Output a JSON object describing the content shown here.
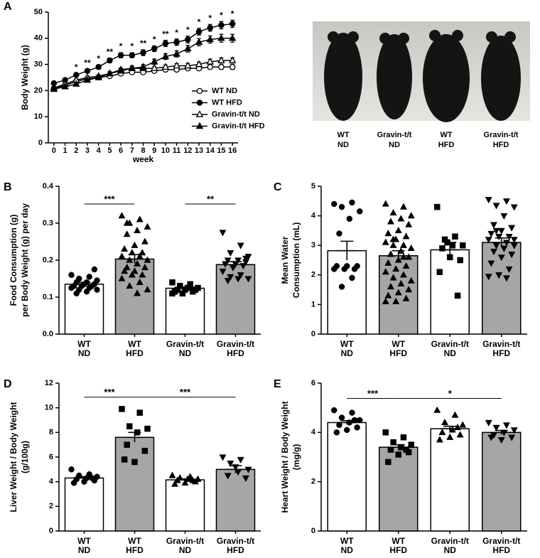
{
  "chart_data": [
    {
      "type": "line",
      "panel_label": "A",
      "ylabel": "Body Weight (g)",
      "xlabel": "week",
      "x": [
        0,
        1,
        2,
        3,
        4,
        5,
        6,
        7,
        8,
        9,
        10,
        11,
        12,
        13,
        14,
        15,
        16
      ],
      "xlim": [
        -0.5,
        16.5
      ],
      "xticks": [
        0,
        1,
        2,
        3,
        4,
        5,
        6,
        7,
        8,
        9,
        10,
        11,
        12,
        13,
        14,
        15,
        16
      ],
      "ylim": [
        0,
        50
      ],
      "yticks": [
        0,
        10,
        20,
        30,
        40,
        50
      ],
      "legend": "lower right",
      "series": [
        {
          "name": "WT ND",
          "color": "#000000",
          "marker": "circle",
          "filled": false,
          "values": [
            20.8,
            22,
            23.5,
            24.5,
            25,
            25.5,
            26.5,
            27,
            27,
            27.5,
            28,
            28,
            28.5,
            28.5,
            29,
            29,
            29
          ],
          "errors": [
            0.4,
            0.4,
            0.5,
            0.5,
            0.5,
            0.6,
            0.6,
            0.6,
            0.6,
            0.7,
            0.7,
            0.7,
            0.8,
            0.8,
            0.8,
            0.9,
            0.9
          ]
        },
        {
          "name": "WT HFD",
          "color": "#000000",
          "marker": "circle",
          "filled": true,
          "values": [
            22.8,
            24,
            26,
            27.5,
            29,
            31.5,
            33.5,
            33.5,
            34.5,
            36,
            38,
            38.5,
            39.5,
            42.5,
            44,
            45,
            45.5
          ],
          "errors": [
            0.4,
            0.5,
            0.6,
            0.7,
            0.8,
            0.9,
            1,
            1,
            1.1,
            1.1,
            1.2,
            1.2,
            1.3,
            1.3,
            1.3,
            1.4,
            1.4
          ]
        },
        {
          "name": "Gravin-t/t ND",
          "color": "#000000",
          "marker": "triangle",
          "filled": false,
          "values": [
            21,
            22.5,
            24,
            25,
            25.5,
            26.5,
            28,
            28.5,
            28.5,
            28.5,
            29,
            29.5,
            29.5,
            30,
            31,
            31.5,
            31.5
          ],
          "errors": [
            0.4,
            0.4,
            0.5,
            0.5,
            0.5,
            0.6,
            0.6,
            0.6,
            0.7,
            0.7,
            0.8,
            0.8,
            0.9,
            0.9,
            1,
            1,
            1
          ]
        },
        {
          "name": "Gravin-t/t HFD",
          "color": "#000000",
          "marker": "triangle",
          "filled": true,
          "values": [
            20.5,
            21.5,
            22.5,
            24,
            25,
            26.5,
            27.5,
            28.5,
            29,
            31,
            33,
            34,
            36,
            38.5,
            39.5,
            40,
            40
          ],
          "errors": [
            0.4,
            0.4,
            0.5,
            0.5,
            0.6,
            0.7,
            0.8,
            0.9,
            1,
            1,
            1.1,
            1.2,
            1.3,
            1.4,
            1.4,
            1.5,
            1.5
          ]
        }
      ],
      "significance": [
        null,
        null,
        "*",
        "**",
        "*",
        "**",
        "*",
        "*",
        "**",
        "*",
        "**",
        "*",
        "*",
        "*",
        "*",
        "*",
        "*"
      ]
    },
    {
      "type": "bar",
      "panel_label": "B",
      "ylabel": [
        "Food Consumption (g)",
        "per Body Weight (g) per day"
      ],
      "categories": [
        [
          "WT",
          "ND"
        ],
        [
          "WT",
          "HFD"
        ],
        [
          "Gravin-t/t",
          "ND"
        ],
        [
          "Gravin-t/t",
          "HFD"
        ]
      ],
      "fills": [
        "#ffffff",
        "#a6a6a6",
        "#ffffff",
        "#a6a6a6"
      ],
      "markers": [
        "circle",
        "triangle",
        "square",
        "triangle-down"
      ],
      "ylim": [
        0,
        0.4
      ],
      "yticks": [
        {
          "value": 0,
          "label": "0.0"
        },
        0.1,
        0.2,
        0.3,
        0.4
      ],
      "values": [
        0.135,
        0.203,
        0.124,
        0.188
      ],
      "errors": [
        0.005,
        0.012,
        0.003,
        0.008
      ],
      "points": [
        [
          0.16,
          0.155,
          0.15,
          0.145,
          0.14,
          0.14,
          0.135,
          0.135,
          0.13,
          0.13,
          0.13,
          0.125,
          0.125,
          0.12,
          0.12,
          0.115,
          0.11,
          0.175
        ],
        [
          0.32,
          0.31,
          0.3,
          0.29,
          0.28,
          0.27,
          0.25,
          0.24,
          0.23,
          0.22,
          0.22,
          0.21,
          0.21,
          0.2,
          0.2,
          0.19,
          0.18,
          0.18,
          0.17,
          0.17,
          0.16,
          0.16,
          0.15,
          0.14,
          0.13,
          0.12,
          0.11,
          0.3
        ],
        [
          0.14,
          0.13,
          0.13,
          0.125,
          0.125,
          0.12,
          0.12,
          0.12,
          0.115,
          0.115,
          0.11,
          0.11,
          0.135,
          0.13
        ],
        [
          0.275,
          0.24,
          0.22,
          0.21,
          0.2,
          0.2,
          0.195,
          0.19,
          0.19,
          0.185,
          0.18,
          0.17,
          0.16,
          0.155,
          0.15,
          0.15,
          0.145,
          0.205
        ]
      ],
      "significance": [
        {
          "from": 0,
          "to": 1,
          "label": "***"
        },
        {
          "from": 2,
          "to": 3,
          "label": "**"
        }
      ]
    },
    {
      "type": "bar",
      "panel_label": "C",
      "ylabel": [
        "Mean Water",
        "Consumption (mL)"
      ],
      "categories": [
        [
          "WT",
          "ND"
        ],
        [
          "WT",
          "HFD"
        ],
        [
          "Gravin-t/t",
          "ND"
        ],
        [
          "Gravin-t/t",
          "HFD"
        ]
      ],
      "fills": [
        "#ffffff",
        "#a6a6a6",
        "#ffffff",
        "#a6a6a6"
      ],
      "markers": [
        "circle",
        "triangle",
        "square",
        "triangle-down"
      ],
      "ylim": [
        0,
        5
      ],
      "yticks": [
        0,
        1,
        2,
        3,
        4,
        5
      ],
      "values": [
        2.82,
        2.65,
        2.85,
        3.1
      ],
      "errors": [
        0.32,
        0.17,
        0.25,
        0.15
      ],
      "points": [
        [
          4.4,
          4.45,
          4.3,
          4.15,
          3.9,
          3.4,
          2.3,
          2.3,
          2.3,
          2.2,
          2.2,
          2.2,
          1.9,
          1.6
        ],
        [
          4.4,
          4.3,
          4.1,
          4,
          3.9,
          3.8,
          3.7,
          3.5,
          3.4,
          3.3,
          3.2,
          3.1,
          3,
          3,
          2.9,
          2.8,
          2.7,
          2.6,
          2.5,
          2.4,
          2.3,
          2.2,
          2.1,
          2,
          1.9,
          1.8,
          1.7,
          1.6,
          1.5,
          1.4,
          1.3,
          1.2,
          1.1,
          1.1,
          2.6,
          3.2
        ],
        [
          4.3,
          3.3,
          3.2,
          3,
          3,
          2.9,
          2.5,
          2.6,
          2.1,
          1.3,
          3.1
        ],
        [
          4.55,
          4.5,
          4.35,
          4.3,
          4,
          3.7,
          3.6,
          3.5,
          3.4,
          3.3,
          3.3,
          3.2,
          3.1,
          3,
          3,
          2.9,
          2.8,
          2.7,
          2.6,
          2.4,
          2.2,
          2,
          1.95,
          1.9,
          3.5,
          3.2,
          2.9
        ]
      ],
      "significance": []
    },
    {
      "type": "bar",
      "panel_label": "D",
      "ylabel": [
        "Liver Weight / Body Weight",
        "(g/100g)"
      ],
      "categories": [
        [
          "WT",
          "ND"
        ],
        [
          "WT",
          "HFD"
        ],
        [
          "Gravin-t/t",
          "ND"
        ],
        [
          "Gravin-t/t",
          "HFD"
        ]
      ],
      "fills": [
        "#ffffff",
        "#a6a6a6",
        "#ffffff",
        "#a6a6a6"
      ],
      "markers": [
        "circle",
        "square",
        "triangle",
        "triangle-down"
      ],
      "ylim": [
        0,
        12
      ],
      "yticks": [
        0,
        2,
        4,
        6,
        8,
        10,
        12
      ],
      "values": [
        4.3,
        7.6,
        4.15,
        5.0
      ],
      "errors": [
        0.1,
        0.4,
        0.08,
        0.3
      ],
      "points": [
        [
          5,
          4.6,
          4.5,
          4.4,
          4.3,
          4.2,
          4.1,
          4,
          3.9,
          4.3
        ],
        [
          9.9,
          9.6,
          8.5,
          8.3,
          8,
          7,
          6.5,
          5.6,
          5.8
        ],
        [
          4.5,
          4.4,
          4.3,
          4.2,
          4.2,
          4.1,
          4,
          3.9,
          3.8,
          4.1
        ],
        [
          6,
          5.8,
          5.5,
          5,
          4.8,
          4.5,
          4.3,
          5.2
        ]
      ],
      "significance": [
        {
          "from": 0,
          "to": 1,
          "label": "***"
        },
        {
          "from": 1,
          "to": 3,
          "label": "***"
        }
      ]
    },
    {
      "type": "bar",
      "panel_label": "E",
      "ylabel": [
        "Heart Weight / Body Weight",
        "(mg/g)"
      ],
      "categories": [
        [
          "WT",
          "ND"
        ],
        [
          "WT",
          "HFD"
        ],
        [
          "Gravin-t/t",
          "ND"
        ],
        [
          "Gravin-t/t",
          "HFD"
        ]
      ],
      "fills": [
        "#ffffff",
        "#a6a6a6",
        "#ffffff",
        "#a6a6a6"
      ],
      "markers": [
        "circle",
        "square",
        "triangle",
        "triangle-down"
      ],
      "ylim": [
        0,
        6
      ],
      "yticks": [
        0,
        2,
        4,
        6
      ],
      "values": [
        4.4,
        3.4,
        4.15,
        4.0
      ],
      "errors": [
        0.08,
        0.1,
        0.1,
        0.08
      ],
      "points": [
        [
          4.9,
          4.8,
          4.6,
          4.5,
          4.4,
          4.3,
          4.2,
          4.1,
          4,
          4.5
        ],
        [
          4,
          3.8,
          3.6,
          3.5,
          3.4,
          3.3,
          3.2,
          3.1,
          2.8,
          3.3
        ],
        [
          4.9,
          4.7,
          4.4,
          4.3,
          4.1,
          4,
          3.9,
          3.8,
          3.7,
          4.2
        ],
        [
          4.4,
          4.3,
          4.2,
          4.1,
          4,
          3.9,
          3.8,
          3.7,
          3.8
        ]
      ],
      "significance": [
        {
          "from": 0,
          "to": 1,
          "label": "***"
        },
        {
          "from": 1,
          "to": 3,
          "label": "*"
        }
      ]
    }
  ],
  "photo": {
    "labels": [
      [
        "WT",
        "ND"
      ],
      [
        "Gravin-t/t",
        "ND"
      ],
      [
        "WT",
        "HFD"
      ],
      [
        "Gravin-t/t",
        "HFD"
      ]
    ]
  }
}
